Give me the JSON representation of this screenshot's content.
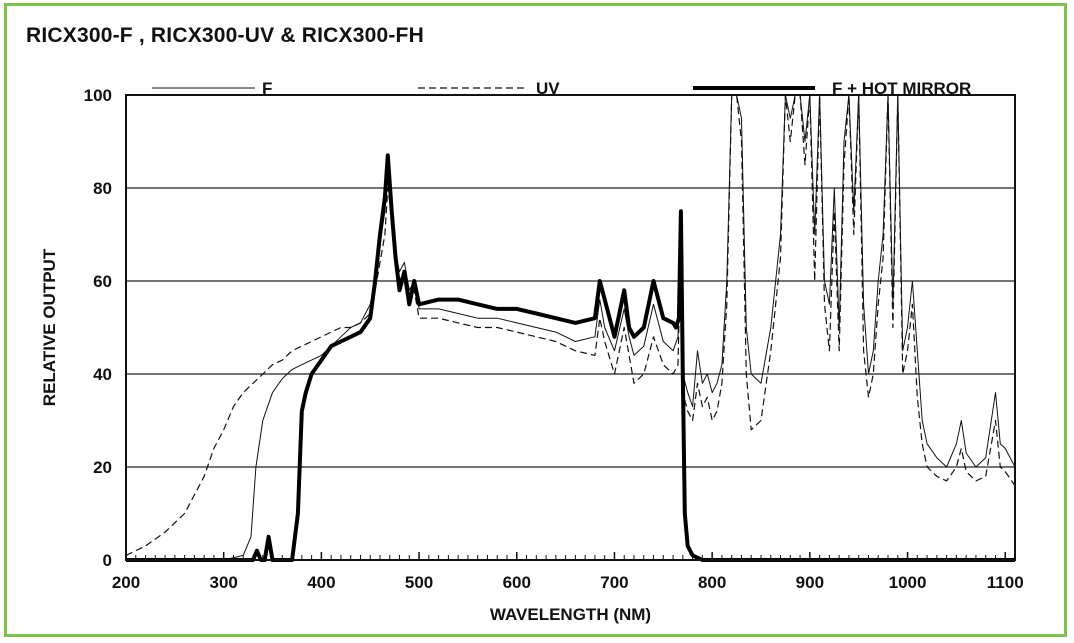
{
  "title": "RICX300-F ,   RICX300-UV  &  RICX300-FH",
  "chart_data": {
    "type": "line",
    "title": "RICX300-F ,   RICX300-UV  &  RICX300-FH",
    "xlabel": "WAVELENGTH (NM)",
    "ylabel": "RELATIVE OUTPUT",
    "xlim": [
      200,
      1110
    ],
    "ylim": [
      0,
      100
    ],
    "xticks": [
      200,
      300,
      400,
      500,
      600,
      700,
      800,
      900,
      1000,
      1100
    ],
    "yticks": [
      0,
      20,
      40,
      60,
      80,
      100
    ],
    "grid": "horizontal",
    "legend_position": "top",
    "series": [
      {
        "name": "F",
        "style": "thin-solid",
        "x": [
          200,
          300,
          320,
          328,
          333,
          340,
          350,
          360,
          370,
          380,
          390,
          400,
          410,
          420,
          430,
          440,
          450,
          455,
          460,
          465,
          468,
          472,
          476,
          480,
          485,
          490,
          495,
          500,
          520,
          540,
          560,
          580,
          600,
          620,
          640,
          660,
          680,
          685,
          690,
          700,
          710,
          715,
          720,
          730,
          740,
          750,
          760,
          765,
          768,
          770,
          775,
          780,
          785,
          790,
          795,
          800,
          805,
          810,
          815,
          820,
          825,
          830,
          835,
          840,
          850,
          860,
          870,
          875,
          880,
          885,
          890,
          895,
          900,
          905,
          910,
          915,
          920,
          925,
          930,
          935,
          940,
          945,
          950,
          955,
          960,
          965,
          970,
          975,
          980,
          985,
          990,
          995,
          1000,
          1005,
          1010,
          1015,
          1020,
          1030,
          1040,
          1050,
          1055,
          1060,
          1070,
          1080,
          1090,
          1095,
          1100,
          1110
        ],
        "y": [
          0,
          0,
          1,
          5,
          20,
          30,
          36,
          39,
          41,
          42,
          43,
          44,
          46,
          48,
          50,
          51,
          55,
          60,
          68,
          75,
          85,
          78,
          66,
          62,
          64,
          58,
          60,
          54,
          54,
          53,
          52,
          52,
          51,
          50,
          49,
          47,
          48,
          56,
          50,
          45,
          54,
          48,
          44,
          46,
          55,
          47,
          45,
          48,
          75,
          40,
          36,
          33,
          45,
          38,
          40,
          36,
          38,
          42,
          60,
          100,
          100,
          95,
          50,
          40,
          38,
          50,
          70,
          100,
          95,
          100,
          100,
          90,
          100,
          70,
          100,
          60,
          55,
          80,
          50,
          90,
          100,
          75,
          100,
          55,
          40,
          45,
          60,
          70,
          100,
          55,
          100,
          45,
          50,
          60,
          45,
          30,
          25,
          22,
          20,
          25,
          30,
          23,
          20,
          22,
          36,
          25,
          24,
          20
        ],
        "color": "#111111"
      },
      {
        "name": "UV",
        "style": "dashed",
        "x": [
          200,
          220,
          240,
          260,
          280,
          290,
          300,
          310,
          320,
          330,
          340,
          350,
          360,
          370,
          380,
          390,
          400,
          410,
          420,
          430,
          440,
          450,
          455,
          460,
          465,
          468,
          472,
          476,
          480,
          485,
          490,
          495,
          500,
          520,
          540,
          560,
          580,
          600,
          620,
          640,
          660,
          680,
          685,
          690,
          700,
          710,
          715,
          720,
          730,
          740,
          750,
          760,
          765,
          768,
          770,
          775,
          780,
          785,
          790,
          795,
          800,
          805,
          810,
          815,
          820,
          825,
          830,
          835,
          840,
          850,
          860,
          870,
          875,
          880,
          885,
          890,
          895,
          900,
          905,
          910,
          915,
          920,
          925,
          930,
          935,
          940,
          945,
          950,
          955,
          960,
          965,
          970,
          975,
          980,
          985,
          990,
          995,
          1000,
          1005,
          1010,
          1015,
          1020,
          1030,
          1040,
          1050,
          1055,
          1060,
          1070,
          1080,
          1090,
          1095,
          1100,
          1110
        ],
        "y": [
          1,
          3,
          6,
          10,
          18,
          24,
          28,
          33,
          36,
          38,
          40,
          42,
          43,
          45,
          46,
          47,
          48,
          49,
          50,
          50,
          51,
          53,
          58,
          64,
          70,
          80,
          74,
          63,
          60,
          62,
          56,
          58,
          52,
          52,
          51,
          50,
          50,
          49,
          48,
          47,
          45,
          44,
          52,
          47,
          40,
          50,
          44,
          38,
          40,
          48,
          42,
          40,
          42,
          70,
          36,
          32,
          30,
          38,
          33,
          35,
          30,
          32,
          38,
          55,
          100,
          100,
          90,
          40,
          28,
          30,
          45,
          65,
          100,
          90,
          100,
          100,
          85,
          100,
          60,
          100,
          55,
          45,
          75,
          45,
          85,
          100,
          70,
          100,
          45,
          35,
          40,
          55,
          65,
          100,
          50,
          100,
          40,
          45,
          55,
          35,
          25,
          20,
          18,
          17,
          20,
          24,
          19,
          17,
          18,
          30,
          20,
          19,
          16
        ],
        "color": "#111111"
      },
      {
        "name": "F + HOT MIRROR",
        "style": "thick-solid",
        "x": [
          200,
          320,
          330,
          334,
          338,
          342,
          346,
          350,
          354,
          370,
          376,
          380,
          384,
          390,
          400,
          410,
          420,
          430,
          440,
          450,
          455,
          460,
          465,
          468,
          472,
          476,
          480,
          485,
          490,
          495,
          500,
          520,
          540,
          560,
          580,
          600,
          620,
          640,
          660,
          680,
          685,
          690,
          700,
          710,
          715,
          720,
          730,
          740,
          750,
          760,
          763,
          766,
          768,
          770,
          772,
          775,
          780,
          790,
          800,
          1110
        ],
        "y": [
          0,
          0,
          0,
          2,
          0,
          0,
          5,
          0,
          0,
          0,
          10,
          32,
          36,
          40,
          43,
          46,
          47,
          48,
          49,
          52,
          60,
          70,
          78,
          87,
          75,
          65,
          58,
          62,
          55,
          60,
          55,
          56,
          56,
          55,
          54,
          54,
          53,
          52,
          51,
          52,
          60,
          56,
          48,
          58,
          50,
          48,
          50,
          60,
          52,
          51,
          50,
          52,
          75,
          40,
          10,
          3,
          1,
          0,
          0,
          0
        ],
        "color": "#000000"
      }
    ]
  }
}
